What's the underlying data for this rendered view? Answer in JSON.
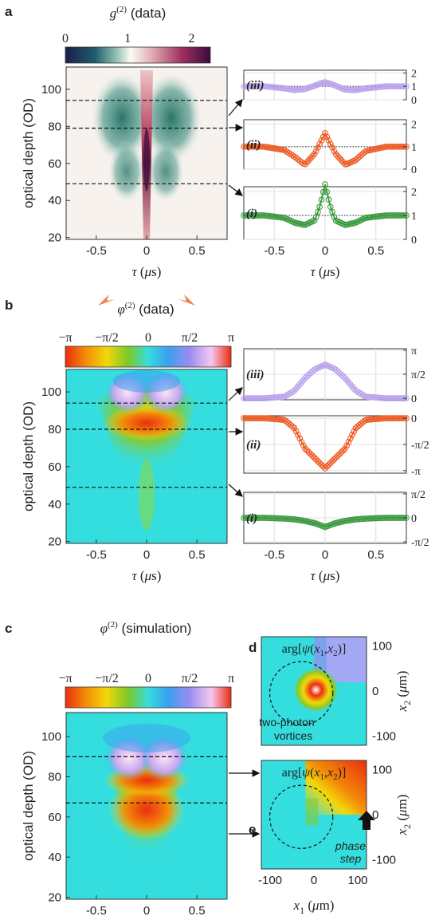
{
  "panels": {
    "a": {
      "letter": "a",
      "cbar_title": "g(2) (data)",
      "cbar_ticks": [
        "0",
        "1",
        "2"
      ],
      "ylabel": "optical depth (OD)",
      "xlabel": "τ (μs)",
      "x_ticks": [
        "-0.5",
        "0",
        "0.5"
      ],
      "y_ticks": [
        "20",
        "40",
        "60",
        "80",
        "100"
      ],
      "side_yticks": [
        "2",
        "1",
        "0"
      ]
    },
    "b": {
      "letter": "b",
      "cbar_title": "φ(2) (data)",
      "cbar_ticks": [
        "−π",
        "−π/2",
        "0",
        "π/2",
        "π"
      ],
      "ylabel": "optical depth (OD)",
      "xlabel": "τ (μs)",
      "x_ticks": [
        "-0.5",
        "0",
        "0.5"
      ],
      "y_ticks": [
        "20",
        "40",
        "60",
        "80",
        "100"
      ],
      "side_yticks_iii": [
        "π",
        "π/2",
        "0"
      ],
      "side_yticks_ii": [
        "0",
        "-π/2",
        "-π"
      ],
      "side_yticks_i": [
        "π/2",
        "0",
        "-π/2"
      ]
    },
    "c": {
      "letter": "c",
      "cbar_title": "φ(2) (simulation)",
      "cbar_ticks": [
        "−π",
        "−π/2",
        "0",
        "π/2",
        "π"
      ],
      "ylabel": "optical depth (OD)",
      "xlabel": "τ (μs)",
      "x_ticks": [
        "-0.5",
        "0",
        "0.5"
      ],
      "y_ticks": [
        "20",
        "40",
        "60",
        "80",
        "100"
      ]
    },
    "d": {
      "letter": "d",
      "title": "arg[ψ(x1,x2)]",
      "annotation": [
        "two-photon",
        "vortices"
      ],
      "y_ticks": [
        "100",
        "0",
        "-100"
      ],
      "ylabel": "x2 (μm)"
    },
    "e": {
      "letter": "e",
      "title": "arg[ψ(x1,x2)]",
      "annotation": [
        "phase",
        "step"
      ],
      "x_ticks": [
        "-100",
        "0",
        "100"
      ],
      "y_ticks": [
        "100",
        "0",
        "-100"
      ],
      "xlabel": "x1 (μm)",
      "ylabel": "x2 (μm)"
    }
  },
  "row_labels": [
    "(iii)",
    "(ii)",
    "(i)"
  ],
  "colors": {
    "iii": "#b9a2ec",
    "ii": "#ee5a24",
    "i": "#3a9a3e",
    "phase_cyan": "#35dede",
    "phase_red": "#ec2d10",
    "phase_yellow": "#f2d80a",
    "g2_teal": "#1f6f62",
    "g2_red": "#8a1030"
  },
  "chart_data": [
    {
      "id": "a-map",
      "type": "heatmap",
      "title": "g(2) (data)",
      "xlabel": "τ (μs)",
      "ylabel": "optical depth (OD)",
      "xlim": [
        -0.8,
        0.8
      ],
      "ylim": [
        19,
        112
      ],
      "colorbar_range": [
        0,
        2.3
      ],
      "dashed_OD": [
        94,
        79,
        49
      ]
    },
    {
      "id": "a-cuts",
      "type": "line",
      "xlabel": "τ (μs)",
      "xlim": [
        -0.8,
        0.8
      ],
      "ylim": [
        0,
        2
      ],
      "reference_line": 1,
      "x": [
        -0.8,
        -0.6,
        -0.4,
        -0.3,
        -0.2,
        -0.1,
        -0.05,
        0,
        0.05,
        0.1,
        0.2,
        0.3,
        0.4,
        0.6,
        0.8
      ],
      "series": [
        {
          "name": "(iii)",
          "values": [
            1.0,
            1.0,
            0.85,
            0.72,
            0.8,
            1.05,
            1.2,
            1.3,
            1.2,
            1.05,
            0.75,
            0.72,
            0.85,
            1.0,
            1.0
          ]
        },
        {
          "name": "(ii)",
          "values": [
            1.0,
            1.0,
            0.85,
            0.55,
            0.2,
            0.7,
            1.15,
            1.6,
            1.15,
            0.7,
            0.2,
            0.4,
            0.8,
            1.0,
            1.0
          ]
        },
        {
          "name": "(i)",
          "values": [
            1.0,
            1.0,
            0.9,
            0.7,
            0.6,
            0.8,
            1.4,
            2.3,
            1.4,
            0.8,
            0.6,
            0.7,
            0.9,
            1.0,
            1.0
          ]
        }
      ]
    },
    {
      "id": "b-map",
      "type": "heatmap",
      "title": "φ(2) (data)",
      "xlabel": "τ (μs)",
      "ylabel": "optical depth (OD)",
      "xlim": [
        -0.8,
        0.8
      ],
      "ylim": [
        19,
        112
      ],
      "colorbar_range": [
        "−π",
        "π"
      ],
      "dashed_OD": [
        94,
        80,
        49
      ]
    },
    {
      "id": "b-cuts",
      "type": "line",
      "xlabel": "τ (μs)",
      "xlim": [
        -0.8,
        0.8
      ],
      "x": [
        -0.8,
        -0.6,
        -0.4,
        -0.3,
        -0.2,
        -0.1,
        0,
        0.1,
        0.2,
        0.3,
        0.4,
        0.6,
        0.8
      ],
      "series": [
        {
          "name": "(iii)",
          "values": [
            0.0,
            0.0,
            0.1,
            0.5,
            1.3,
            1.9,
            2.2,
            1.9,
            1.3,
            0.5,
            0.1,
            0.0,
            0.0
          ]
        },
        {
          "name": "(ii)",
          "values": [
            0.0,
            0.0,
            -0.1,
            -0.6,
            -1.8,
            -2.4,
            -3.0,
            -2.4,
            -1.8,
            -0.6,
            -0.1,
            0.0,
            0.0
          ]
        },
        {
          "name": "(i)",
          "values": [
            0.0,
            0.0,
            -0.05,
            -0.1,
            -0.2,
            -0.35,
            -0.6,
            -0.35,
            -0.2,
            -0.1,
            -0.05,
            0.0,
            0.0
          ]
        }
      ]
    },
    {
      "id": "c-map",
      "type": "heatmap",
      "title": "φ(2) (simulation)",
      "xlabel": "τ (μs)",
      "ylabel": "optical depth (OD)",
      "xlim": [
        -0.8,
        0.8
      ],
      "ylim": [
        19,
        112
      ],
      "colorbar_range": [
        "−π",
        "π"
      ],
      "dashed_OD": [
        90,
        67
      ]
    },
    {
      "id": "d-map",
      "type": "heatmap",
      "title": "arg[ψ(x1,x2)]",
      "ylabel": "x2 (μm)",
      "ylim": [
        -120,
        120
      ]
    },
    {
      "id": "e-map",
      "type": "heatmap",
      "title": "arg[ψ(x1,x2)]",
      "xlabel": "x1 (μm)",
      "ylabel": "x2 (μm)",
      "xlim": [
        -120,
        120
      ],
      "ylim": [
        -120,
        120
      ]
    }
  ]
}
